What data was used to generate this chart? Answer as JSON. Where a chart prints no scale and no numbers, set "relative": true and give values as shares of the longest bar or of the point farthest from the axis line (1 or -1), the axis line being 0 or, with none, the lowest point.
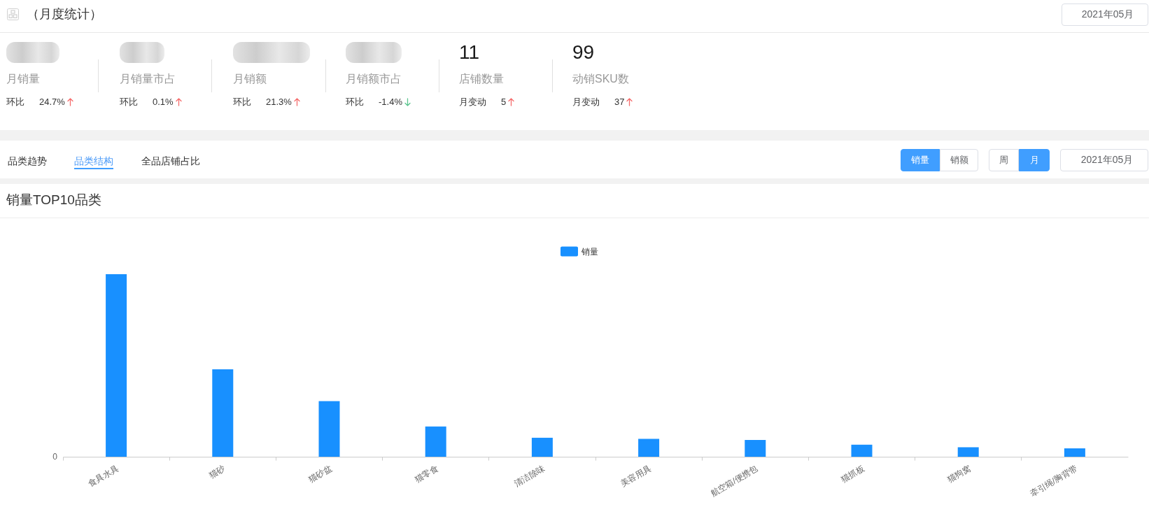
{
  "chart_data": [
    {
      "type": "other",
      "title": "（月度统计）",
      "annotations": [
        "2021年05月",
        "月销量",
        "环比",
        "24.7%",
        "月销量市占",
        "环比",
        "0.1%",
        "月销额",
        "环比",
        "21.3%",
        "月销额市占",
        "环比",
        "-1.4%",
        "11",
        "店铺数量",
        "月变动",
        "5",
        "99",
        "动销SKU数",
        "月变动",
        "37",
        "品类趋势",
        "品类结构",
        "全品店铺占比",
        "销量",
        "销额",
        "周",
        "月",
        "2021年05月"
      ]
    },
    {
      "type": "bar",
      "title": "销量TOP10品类",
      "categories": [
        "食具水具",
        "猫砂",
        "猫砂盆",
        "猫零食",
        "清洁除味",
        "美容用具",
        "航空箱/便携包",
        "猫抓板",
        "猫狗窝",
        "牵引绳/胸背带"
      ],
      "series": [
        {
          "name": "销量",
          "color": "#1890ff",
          "values": [
            1,
            0.479,
            0.305,
            0.166,
            0.104,
            0.098,
            0.092,
            0.066,
            0.052,
            0.046
          ]
        }
      ],
      "relative": true,
      "legend": "top",
      "annotations": [
        "0"
      ]
    }
  ]
}
